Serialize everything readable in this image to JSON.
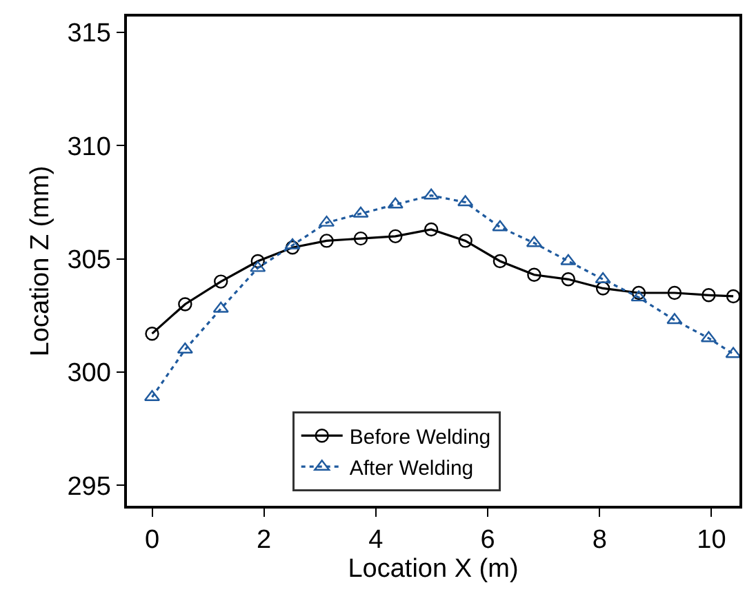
{
  "chart_data": {
    "type": "line",
    "xlabel": "Location X (m)",
    "ylabel": "Location Z (mm)",
    "x": [
      0,
      0.59,
      1.23,
      1.89,
      2.51,
      3.12,
      3.73,
      4.35,
      4.99,
      5.6,
      6.22,
      6.83,
      7.44,
      8.06,
      8.7,
      9.34,
      9.95,
      10.39
    ],
    "series": [
      {
        "name": "Before Welding",
        "color": "#000000",
        "marker": "circle",
        "line_style": "solid",
        "values": [
          301.7,
          303.0,
          304.0,
          304.9,
          305.5,
          305.8,
          305.9,
          306.0,
          306.3,
          305.8,
          304.9,
          304.3,
          304.1,
          303.7,
          303.5,
          303.5,
          303.4,
          303.35
        ]
      },
      {
        "name": "After Welding",
        "color": "#1f5a9e",
        "marker": "triangle",
        "line_style": "dotted",
        "values": [
          298.9,
          301.0,
          302.8,
          304.6,
          305.6,
          306.6,
          307.0,
          307.4,
          307.8,
          307.5,
          306.4,
          305.7,
          304.9,
          304.1,
          303.3,
          302.3,
          301.5,
          300.8
        ]
      }
    ],
    "xlim": [
      -0.45,
      10.5
    ],
    "xticks": [
      0,
      2,
      4,
      6,
      8,
      10
    ],
    "ylim": [
      294.1,
      315.7
    ],
    "yticks": [
      295,
      300,
      305,
      310,
      315
    ],
    "grid": false,
    "legend": "bottom"
  }
}
